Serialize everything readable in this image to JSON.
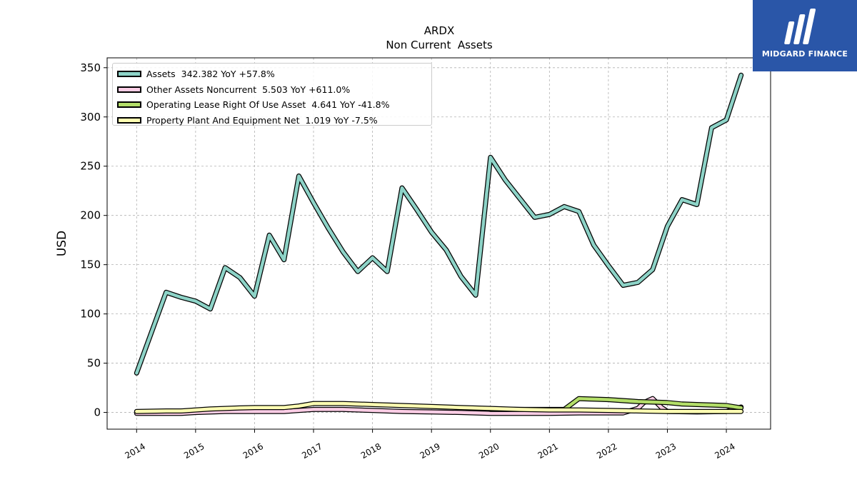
{
  "chart_data": {
    "type": "line",
    "title": "ARDX",
    "subtitle": "Non Current  Assets",
    "ylabel": "USD",
    "xlabel": "",
    "ylim": [
      -17,
      360
    ],
    "xlim": [
      2013.5,
      2024.75
    ],
    "yticks": [
      0,
      50,
      100,
      150,
      200,
      250,
      300,
      350
    ],
    "xticks": [
      "2014",
      "2015",
      "2016",
      "2017",
      "2018",
      "2019",
      "2020",
      "2021",
      "2022",
      "2023",
      "2024"
    ],
    "grid": true,
    "legend_position": "top-left",
    "series": [
      {
        "name": "Assets",
        "legend_label": "Assets  342.382 YoY +57.8%",
        "color": "#8dd3c7",
        "x": [
          2014.0,
          2014.5,
          2014.75,
          2015.0,
          2015.25,
          2015.5,
          2015.75,
          2016.0,
          2016.25,
          2016.5,
          2016.75,
          2017.0,
          2017.25,
          2017.5,
          2017.75,
          2018.0,
          2018.25,
          2018.5,
          2018.75,
          2019.0,
          2019.25,
          2019.5,
          2019.75,
          2020.0,
          2020.25,
          2020.5,
          2020.75,
          2021.0,
          2021.25,
          2021.5,
          2021.75,
          2022.0,
          2022.25,
          2022.5,
          2022.75,
          2023.0,
          2023.25,
          2023.5,
          2023.75,
          2024.0,
          2024.25
        ],
        "values": [
          40,
          122,
          117,
          113,
          105,
          147,
          137,
          118,
          180,
          155,
          240,
          213,
          187,
          163,
          143,
          157,
          143,
          228,
          206,
          183,
          165,
          138,
          119,
          259,
          236,
          217,
          198,
          201,
          209,
          204,
          170,
          149,
          129,
          132,
          145,
          189,
          216,
          211,
          289,
          297,
          342.4
        ]
      },
      {
        "name": "Other Assets Noncurrent",
        "legend_label": "Other Assets Noncurrent  5.503 YoY +611.0%",
        "color": "#fccde5",
        "x": [
          2014.0,
          2014.75,
          2015.0,
          2015.5,
          2016.0,
          2016.5,
          2016.75,
          2017.0,
          2017.5,
          2018.0,
          2018.5,
          2019.0,
          2019.5,
          2020.0,
          2020.5,
          2021.0,
          2021.5,
          2022.0,
          2022.25,
          2022.5,
          2022.6,
          2022.75,
          2022.9,
          2023.0,
          2023.5,
          2024.0,
          2024.25
        ],
        "values": [
          -1,
          -1,
          0,
          1,
          1,
          1,
          2,
          3,
          3,
          2,
          1,
          0.5,
          0,
          -1,
          -1,
          -1,
          -0.5,
          -0.5,
          -0.5,
          4,
          10,
          14,
          5,
          1,
          0.5,
          1,
          5.5
        ]
      },
      {
        "name": "Operating Lease Right Of Use Asset",
        "legend_label": "Operating Lease Right Of Use Asset  4.641 YoY -41.8%",
        "color": "#b3de69",
        "x": [
          2020.0,
          2021.0,
          2021.25,
          2021.5,
          2022.0,
          2022.5,
          2023.0,
          2023.25,
          2023.5,
          2024.0,
          2024.25
        ],
        "values": [
          3,
          3,
          3,
          14,
          13,
          11,
          10,
          8.5,
          8,
          7,
          4.6
        ]
      },
      {
        "name": "Property Plant And Equipment Net",
        "legend_label": "Property Plant And Equipment Net  1.019 YoY -7.5%",
        "color": "#ffffb3",
        "x": [
          2014.0,
          2014.5,
          2014.75,
          2015.0,
          2015.25,
          2015.5,
          2015.75,
          2016.0,
          2016.5,
          2016.75,
          2017.0,
          2017.5,
          2018.0,
          2018.5,
          2019.0,
          2019.5,
          2020.0,
          2020.5,
          2021.0,
          2021.5,
          2022.0,
          2022.5,
          2023.0,
          2023.5,
          2024.0,
          2024.25
        ],
        "values": [
          1,
          1.5,
          1.5,
          2.5,
          3.5,
          4,
          4.5,
          5,
          5,
          6.5,
          9,
          9,
          8,
          7,
          6,
          5,
          4,
          3,
          2.5,
          2.5,
          2,
          1.5,
          1,
          1,
          1,
          1
        ]
      }
    ]
  },
  "logo": {
    "text": "MIDGARD FINANCE",
    "color": "#2a56a8"
  }
}
